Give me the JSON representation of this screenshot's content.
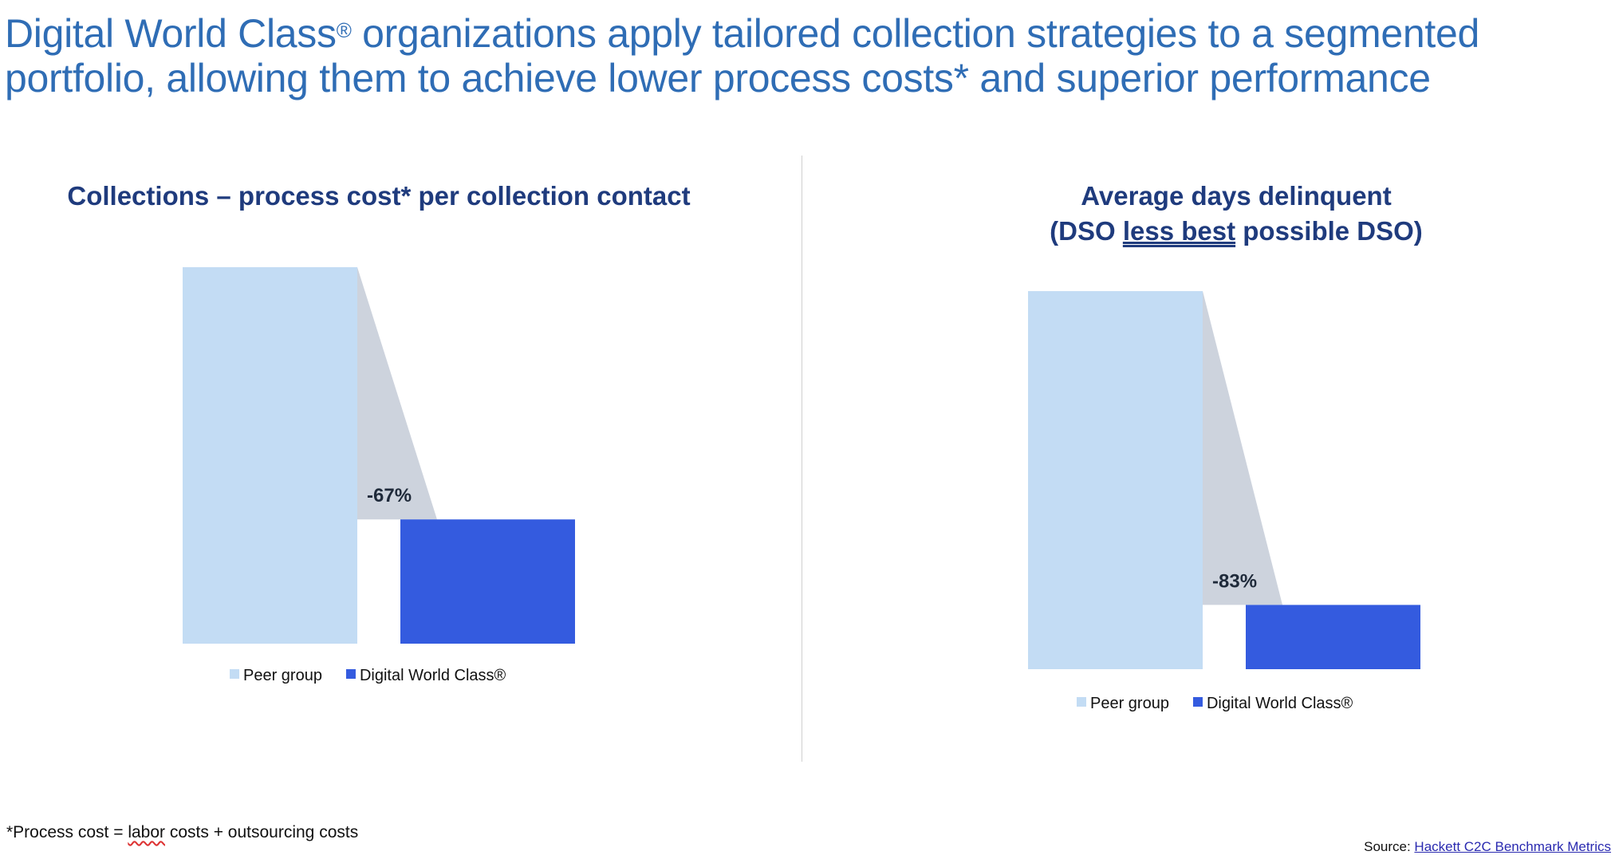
{
  "title": {
    "part1": "Digital World Class",
    "reg": "®",
    "part2": " organizations apply tailored collection strategies to a segmented portfolio, allowing them to achieve lower process costs* and superior performance"
  },
  "colors": {
    "peer": "#c3dcf4",
    "dwc": "#345bdf",
    "gap": "#cdd3dd",
    "title": "#2f6db5",
    "subtitle": "#1f3b7d"
  },
  "chart_data": [
    {
      "type": "bar",
      "title": "Collections – process cost* per collection contact",
      "categories": [
        "Peer group",
        "Digital World Class®"
      ],
      "values": [
        100,
        33
      ],
      "annotation": "-67%",
      "legend": [
        "Peer group",
        "Digital World Class®"
      ],
      "legend_position": "bottom",
      "grid": false,
      "ylim": [
        0,
        100
      ]
    },
    {
      "type": "bar",
      "title_line1": "Average days delinquent",
      "title_line2_pre": "(DSO ",
      "title_line2_underlined": "less best",
      "title_line2_post": " possible DSO)",
      "categories": [
        "Peer group",
        "Digital World Class®"
      ],
      "values": [
        100,
        17
      ],
      "annotation": "-83%",
      "legend": [
        "Peer group",
        "Digital World Class®"
      ],
      "legend_position": "bottom",
      "grid": false,
      "ylim": [
        0,
        100
      ]
    }
  ],
  "footnote": {
    "pre": "*Process cost = ",
    "flagged": "labor",
    "post": " costs + outsourcing costs"
  },
  "source": {
    "label": "Source: ",
    "link": "Hackett C2C Benchmark Metrics"
  }
}
